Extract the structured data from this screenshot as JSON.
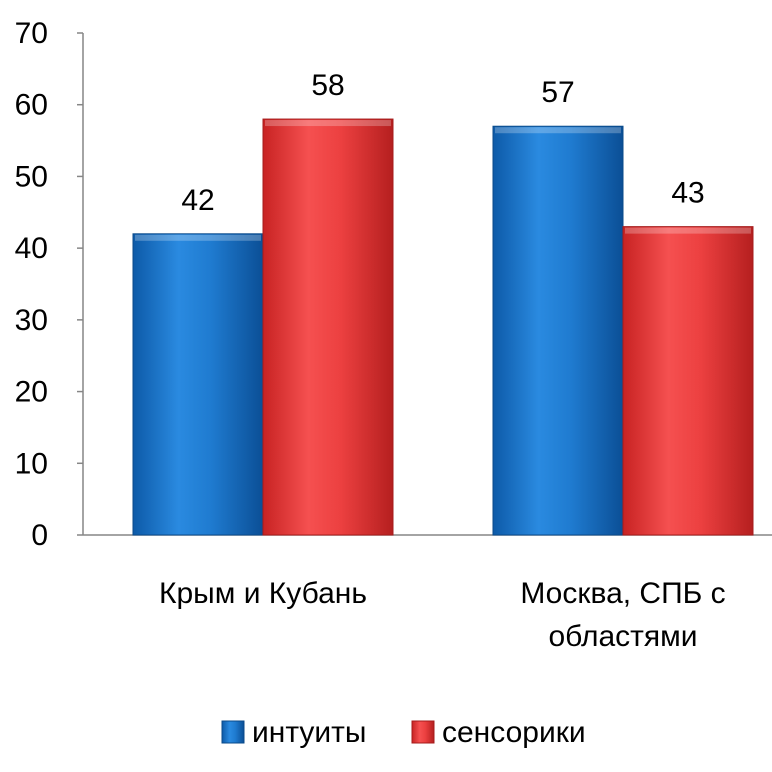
{
  "chart_data": {
    "type": "bar",
    "categories": [
      [
        "Крым и Кубань"
      ],
      [
        "Москва, СПБ с",
        "областями"
      ]
    ],
    "series": [
      {
        "name": "интуиты",
        "values": [
          42,
          57
        ],
        "color": "#1F78C8"
      },
      {
        "name": "сенсорики",
        "values": [
          58,
          43
        ],
        "color": "#E63B3B"
      }
    ],
    "y_ticks": [
      "0",
      "10",
      "20",
      "30",
      "40",
      "50",
      "60",
      "70"
    ],
    "ylim": [
      0,
      70
    ],
    "grid": false,
    "data_labels": true,
    "legend_position": "bottom"
  }
}
